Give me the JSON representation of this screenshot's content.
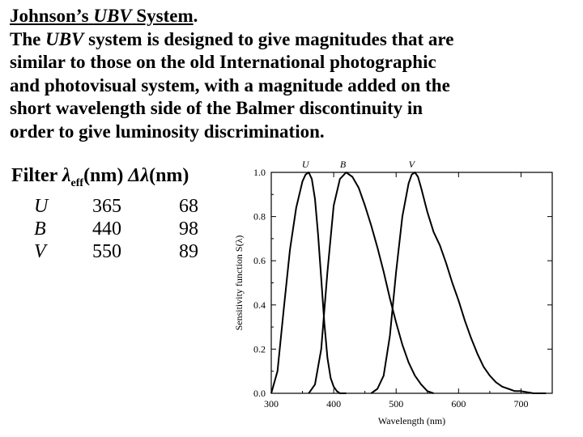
{
  "heading": {
    "title_name": "Johnson’s",
    "title_ubv": "UBV",
    "title_system": "System",
    "title_period": ".",
    "para_pre": "The",
    "para_ubv": "UBV",
    "para_line1_rest": "system is designed to give magnitudes that are",
    "para_line2": "similar to those on the old International photographic",
    "para_line3": "and photovisual system, with a magnitude added on the",
    "para_line4": "short wavelength side of the Balmer discontinuity in",
    "para_line5": "order to give luminosity discrimination."
  },
  "filter_table": {
    "header_filter": "Filter",
    "header_lambda": "λ",
    "header_eff": "eff",
    "header_nm1": "(nm)",
    "header_dlambda": "Δλ",
    "header_nm2": "(nm)",
    "rows": [
      {
        "filter": "U",
        "lambda_eff": "365",
        "delta_lambda": "68"
      },
      {
        "filter": "B",
        "lambda_eff": "440",
        "delta_lambda": "98"
      },
      {
        "filter": "V",
        "lambda_eff": "550",
        "delta_lambda": "89"
      }
    ]
  },
  "chart_data": {
    "type": "line",
    "xlabel": "Wavelength (nm)",
    "ylabel": "Sensitivity function S(λ)",
    "xlim": [
      300,
      750
    ],
    "ylim": [
      0,
      1.0
    ],
    "x_ticks": [
      "300",
      "400",
      "500",
      "600",
      "700"
    ],
    "y_ticks": [
      "0.0",
      "0.2",
      "0.4",
      "0.6",
      "0.8",
      "1.0"
    ],
    "grid": false,
    "curve_labels": [
      "U",
      "B",
      "V"
    ],
    "series": [
      {
        "name": "U",
        "x": [
          300,
          310,
          320,
          330,
          340,
          350,
          355,
          360,
          365,
          370,
          375,
          380,
          385,
          390,
          395,
          400,
          405,
          410,
          420
        ],
        "y": [
          0.0,
          0.1,
          0.38,
          0.65,
          0.84,
          0.96,
          0.99,
          1.0,
          0.97,
          0.88,
          0.72,
          0.52,
          0.32,
          0.16,
          0.07,
          0.03,
          0.01,
          0.0,
          0.0
        ]
      },
      {
        "name": "B",
        "x": [
          360,
          370,
          380,
          390,
          400,
          410,
          420,
          430,
          440,
          450,
          460,
          470,
          480,
          490,
          500,
          510,
          520,
          530,
          540,
          550,
          560
        ],
        "y": [
          0.0,
          0.04,
          0.2,
          0.55,
          0.85,
          0.97,
          1.0,
          0.98,
          0.93,
          0.85,
          0.76,
          0.66,
          0.55,
          0.43,
          0.32,
          0.22,
          0.14,
          0.08,
          0.04,
          0.01,
          0.0
        ]
      },
      {
        "name": "V",
        "x": [
          460,
          470,
          480,
          490,
          500,
          510,
          520,
          525,
          530,
          535,
          540,
          550,
          560,
          570,
          580,
          590,
          600,
          610,
          620,
          630,
          640,
          650,
          660,
          670,
          680,
          690,
          700,
          720,
          740
        ],
        "y": [
          0.0,
          0.02,
          0.08,
          0.26,
          0.55,
          0.8,
          0.95,
          0.99,
          1.0,
          0.98,
          0.93,
          0.82,
          0.73,
          0.67,
          0.59,
          0.5,
          0.42,
          0.33,
          0.25,
          0.18,
          0.12,
          0.08,
          0.05,
          0.03,
          0.02,
          0.01,
          0.01,
          0.0,
          0.0
        ]
      }
    ]
  }
}
